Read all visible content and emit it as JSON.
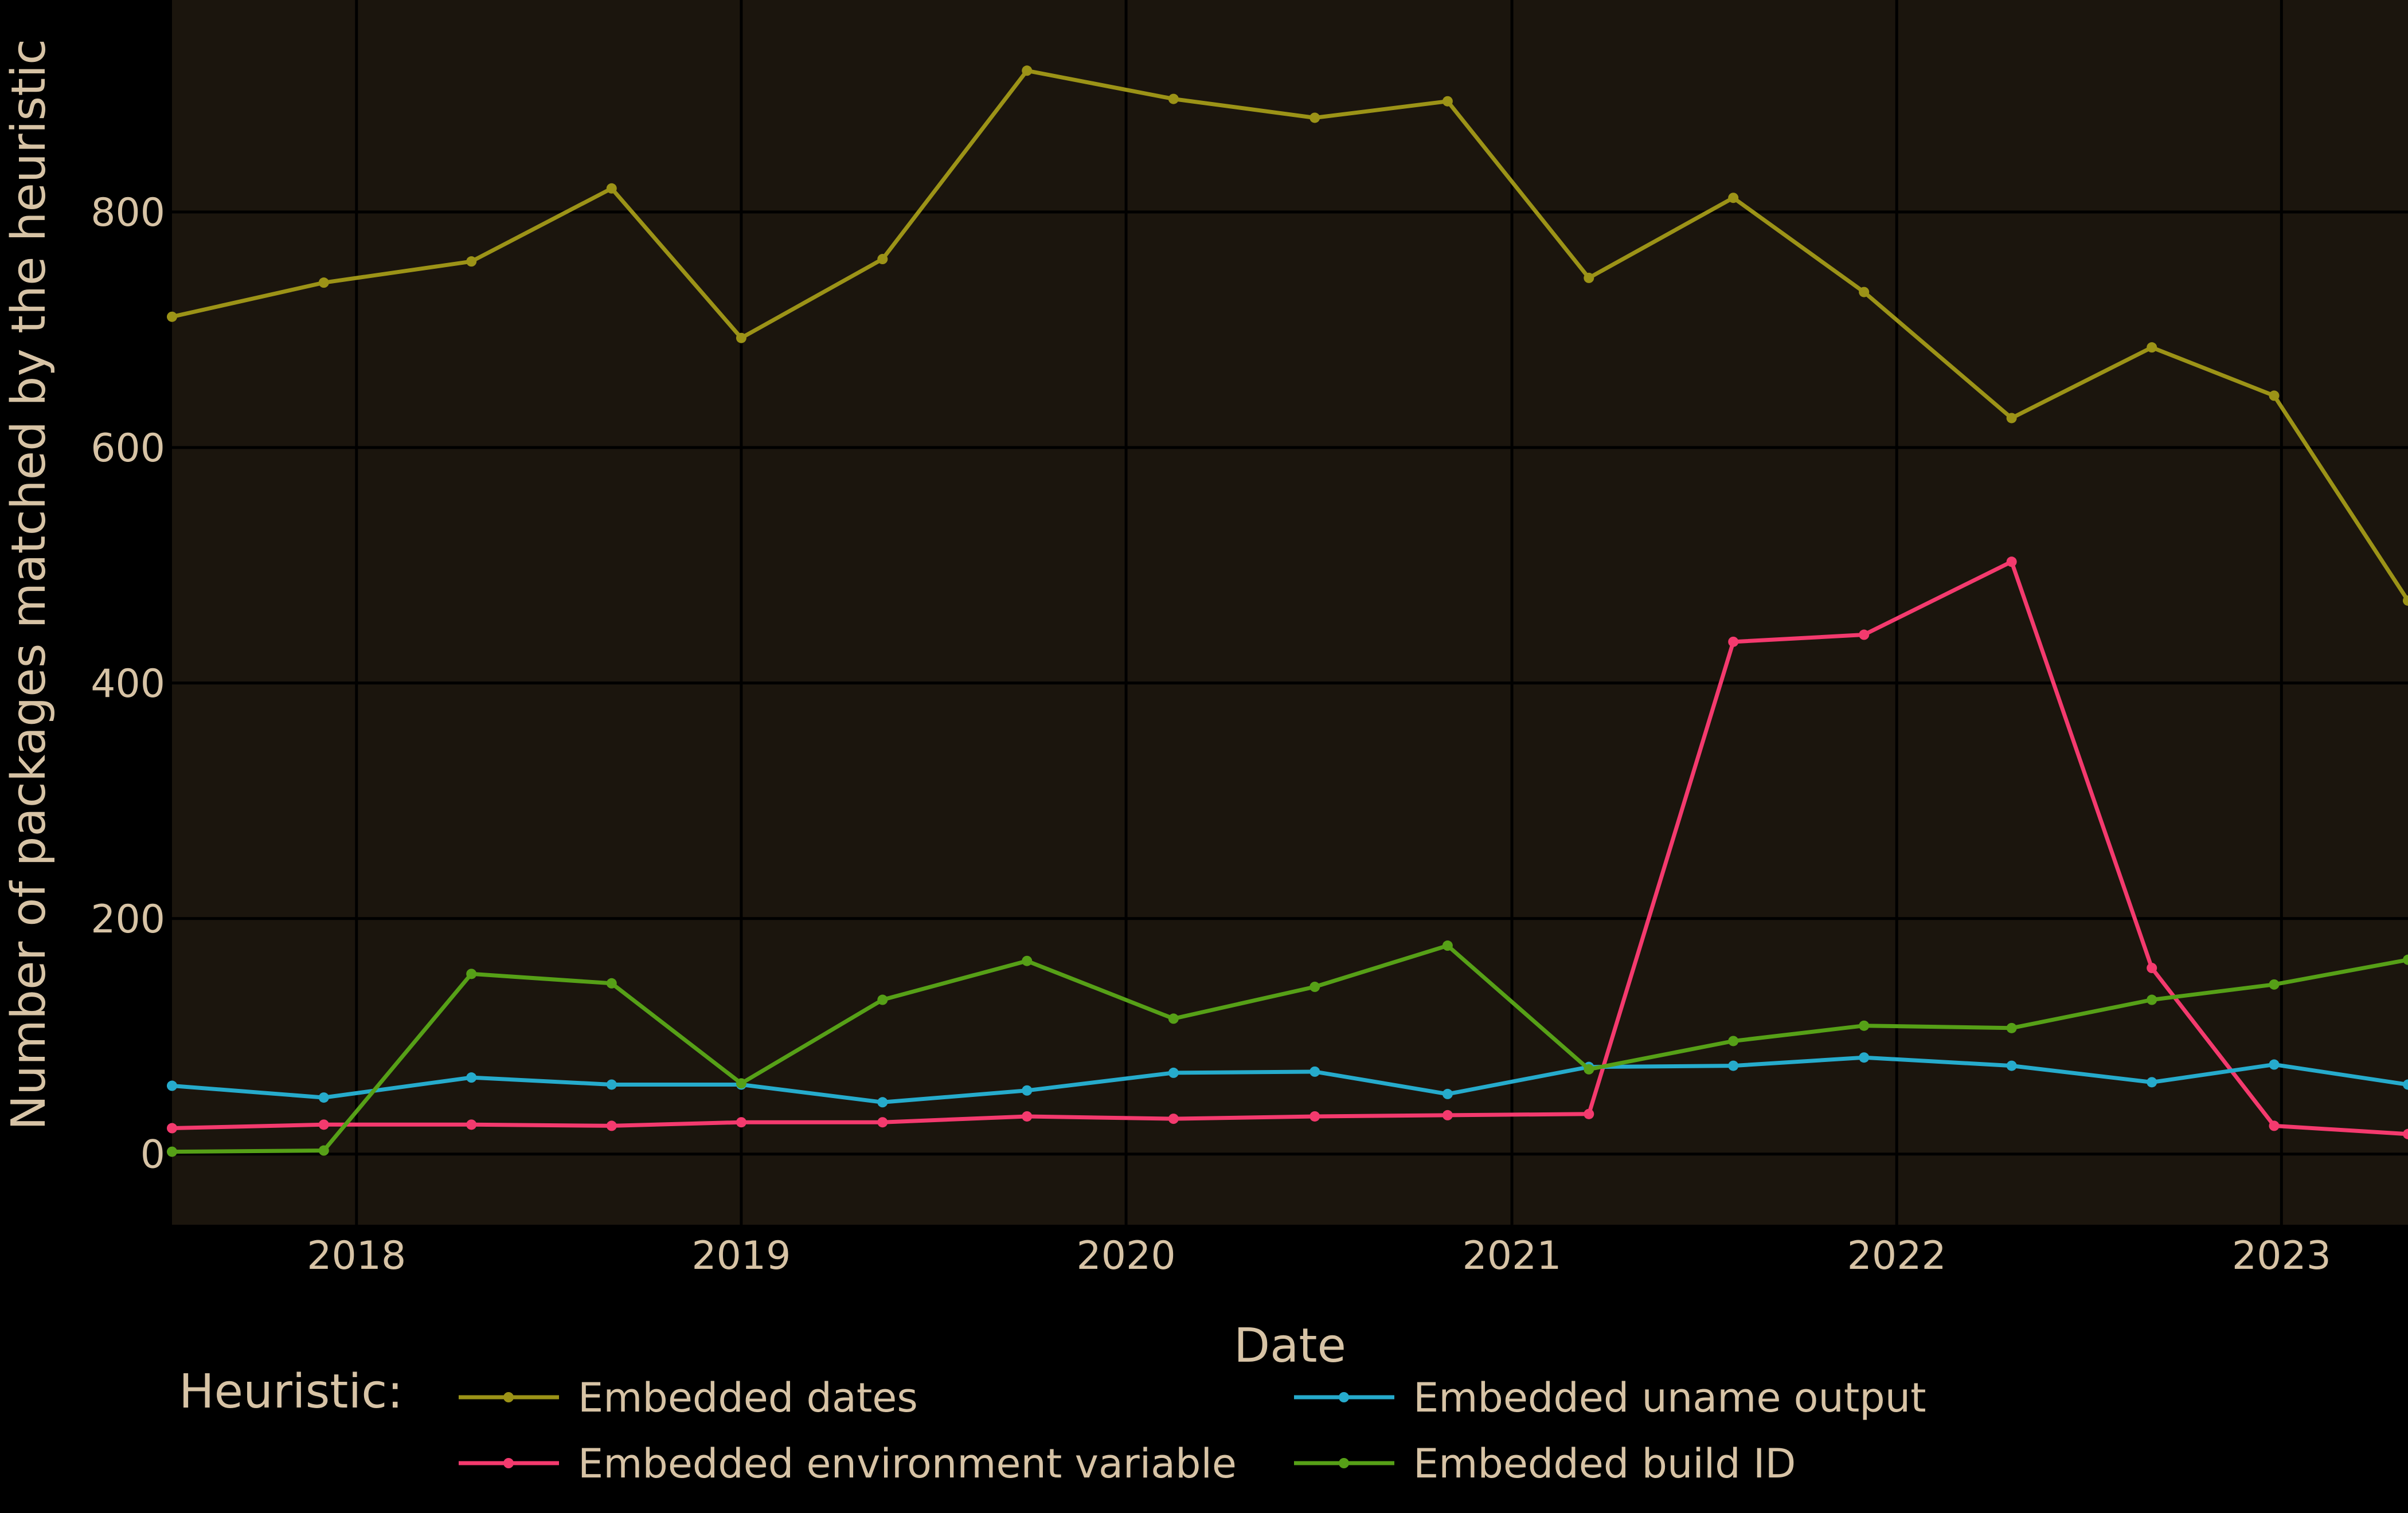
{
  "colors": {
    "background": "#000000",
    "panel": "#1b150d",
    "grid": "#000000",
    "text": "#d7c3a5"
  },
  "chart_data": {
    "type": "line",
    "xlabel": "Date",
    "ylabel": "Number of packages matched by the heuristic",
    "x_range": [
      "2017-07-10",
      "2023-05-01"
    ],
    "ylim": [
      -60,
      980
    ],
    "x_ticks": [
      "2018",
      "2019",
      "2020",
      "2021",
      "2022",
      "2023"
    ],
    "x_tick_dates": [
      "2018-01-01",
      "2019-01-01",
      "2020-01-01",
      "2021-01-01",
      "2022-01-01",
      "2023-01-01"
    ],
    "y_ticks": [
      0,
      200,
      400,
      600,
      800
    ],
    "grid": true,
    "legend_title": "Heuristic:",
    "legend_position": "bottom",
    "x": [
      "2017-07-10",
      "2017-12-01",
      "2018-04-20",
      "2018-08-31",
      "2019-01-01",
      "2019-05-15",
      "2019-09-29",
      "2020-02-15",
      "2020-06-28",
      "2020-11-01",
      "2021-03-15",
      "2021-07-30",
      "2021-12-01",
      "2022-04-20",
      "2022-08-31",
      "2022-12-25",
      "2023-05-01"
    ],
    "series": [
      {
        "name": "Embedded dates",
        "color": "#9c9317",
        "values": [
          711,
          740,
          758,
          820,
          693,
          760,
          920,
          896,
          880,
          894,
          744,
          812,
          732,
          625,
          685,
          644,
          470
        ]
      },
      {
        "name": "Embedded environment variable",
        "color": "#f43a6e",
        "values": [
          22,
          25,
          25,
          24,
          27,
          27,
          32,
          30,
          32,
          33,
          34,
          435,
          441,
          503,
          158,
          24,
          17
        ]
      },
      {
        "name": "Embedded uname output",
        "color": "#26abcc",
        "values": [
          58,
          48,
          65,
          59,
          59,
          44,
          54,
          69,
          70,
          51,
          74,
          75,
          82,
          75,
          61,
          76,
          59
        ]
      },
      {
        "name": "Embedded build ID",
        "color": "#56a017",
        "values": [
          2,
          3,
          153,
          145,
          60,
          131,
          164,
          115,
          142,
          177,
          72,
          96,
          109,
          107,
          131,
          144,
          165
        ]
      }
    ]
  }
}
